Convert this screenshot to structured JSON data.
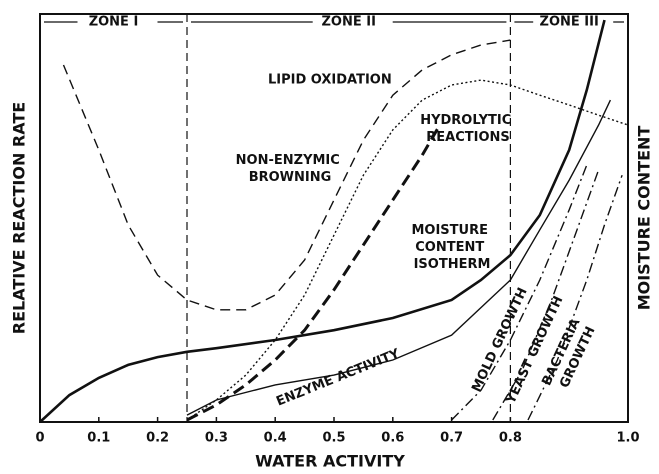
{
  "chart_data": {
    "type": "line",
    "x_label": "WATER ACTIVITY",
    "y_label": "RELATIVE REACTION RATE",
    "y2_label": "MOISTURE CONTENT",
    "xlim": [
      0,
      1
    ],
    "ylim": [
      0,
      100
    ],
    "xticks": [
      0,
      0.1,
      0.2,
      0.3,
      0.4,
      0.5,
      0.6,
      0.7,
      0.8,
      {
        "value": 1,
        "label": "1.0"
      }
    ],
    "zones": [
      {
        "label": "ZONE I",
        "from": 0,
        "to": 0.25
      },
      {
        "label": "ZONE II",
        "from": 0.25,
        "to": 0.8
      },
      {
        "label": "ZONE III",
        "from": 0.8,
        "to": 1
      }
    ],
    "series": [
      {
        "name": "LIPID OXIDATION",
        "color": "#111",
        "style": "long-dashed",
        "x": [
          0.04,
          0.1,
          0.15,
          0.2,
          0.25,
          0.3,
          0.35,
          0.4,
          0.45,
          0.5,
          0.55,
          0.6,
          0.65,
          0.7,
          0.75,
          0.8
        ],
        "values": [
          87.5,
          66.7,
          48.3,
          36.0,
          29.9,
          27.5,
          27.5,
          31.1,
          39.7,
          54.4,
          69.1,
          80.1,
          86.3,
          90.0,
          92.4,
          93.6
        ]
      },
      {
        "name": "NON-ENZYMIC BROWNING",
        "color": "#111",
        "style": "dotted",
        "x": [
          0.25,
          0.3,
          0.35,
          0.4,
          0.45,
          0.5,
          0.55,
          0.6,
          0.65,
          0.7,
          0.75,
          0.8,
          0.85,
          0.9,
          0.95,
          1.0
        ],
        "values": [
          0.5,
          5.4,
          11.5,
          20.1,
          31.1,
          45.8,
          60.5,
          71.6,
          78.9,
          82.6,
          83.8,
          82.6,
          80.1,
          77.7,
          75.2,
          72.8
        ]
      },
      {
        "name": "HYDROLYTIC REACTIONS",
        "color": "#111",
        "style": "heavy-dashed",
        "x": [
          0.25,
          0.3,
          0.35,
          0.4,
          0.45,
          0.5,
          0.55,
          0.6,
          0.65,
          0.68
        ],
        "values": [
          0.5,
          4.2,
          9.1,
          15.2,
          22.5,
          32.4,
          43.4,
          54.4,
          65.4,
          72.8
        ]
      },
      {
        "name": "ENZYME ACTIVITY",
        "color": "#111",
        "style": "solid",
        "x": [
          0.25,
          0.3,
          0.4,
          0.5,
          0.6,
          0.7,
          0.8,
          0.85,
          0.9,
          0.95,
          0.97
        ],
        "values": [
          1.7,
          5.4,
          9.1,
          11.5,
          15.2,
          21.3,
          34.8,
          47.1,
          59.3,
          72.8,
          78.9
        ]
      },
      {
        "name": "MOISTURE CONTENT ISOTHERM",
        "color": "#111",
        "style": "heavy",
        "x": [
          0,
          0.05,
          0.1,
          0.15,
          0.2,
          0.25,
          0.3,
          0.4,
          0.5,
          0.6,
          0.7,
          0.75,
          0.8,
          0.85,
          0.9,
          0.93,
          0.96
        ],
        "values": [
          0,
          6.6,
          10.8,
          14.0,
          15.9,
          17.2,
          18.1,
          20.1,
          22.5,
          25.5,
          29.9,
          34.8,
          40.9,
          50.7,
          66.7,
          81.4,
          98.5
        ]
      },
      {
        "name": "MOLD GROWTH",
        "color": "#111",
        "style": "dash-dot",
        "x": [
          0.7,
          0.75,
          0.8,
          0.85,
          0.9,
          0.93
        ],
        "values": [
          0.5,
          7.8,
          20.1,
          34.8,
          52.0,
          63.0
        ]
      },
      {
        "name": "YEAST GROWTH",
        "color": "#111",
        "style": "dash-dot",
        "x": [
          0.77,
          0.82,
          0.87,
          0.91,
          0.95
        ],
        "values": [
          0.5,
          12.7,
          29.9,
          45.8,
          61.8
        ]
      },
      {
        "name": "BACTERIA GROWTH",
        "color": "#111",
        "style": "dash-dot",
        "x": [
          0.83,
          0.88,
          0.93,
          0.96,
          0.99
        ],
        "values": [
          0.5,
          15.2,
          34.8,
          48.3,
          60.5
        ]
      }
    ]
  }
}
